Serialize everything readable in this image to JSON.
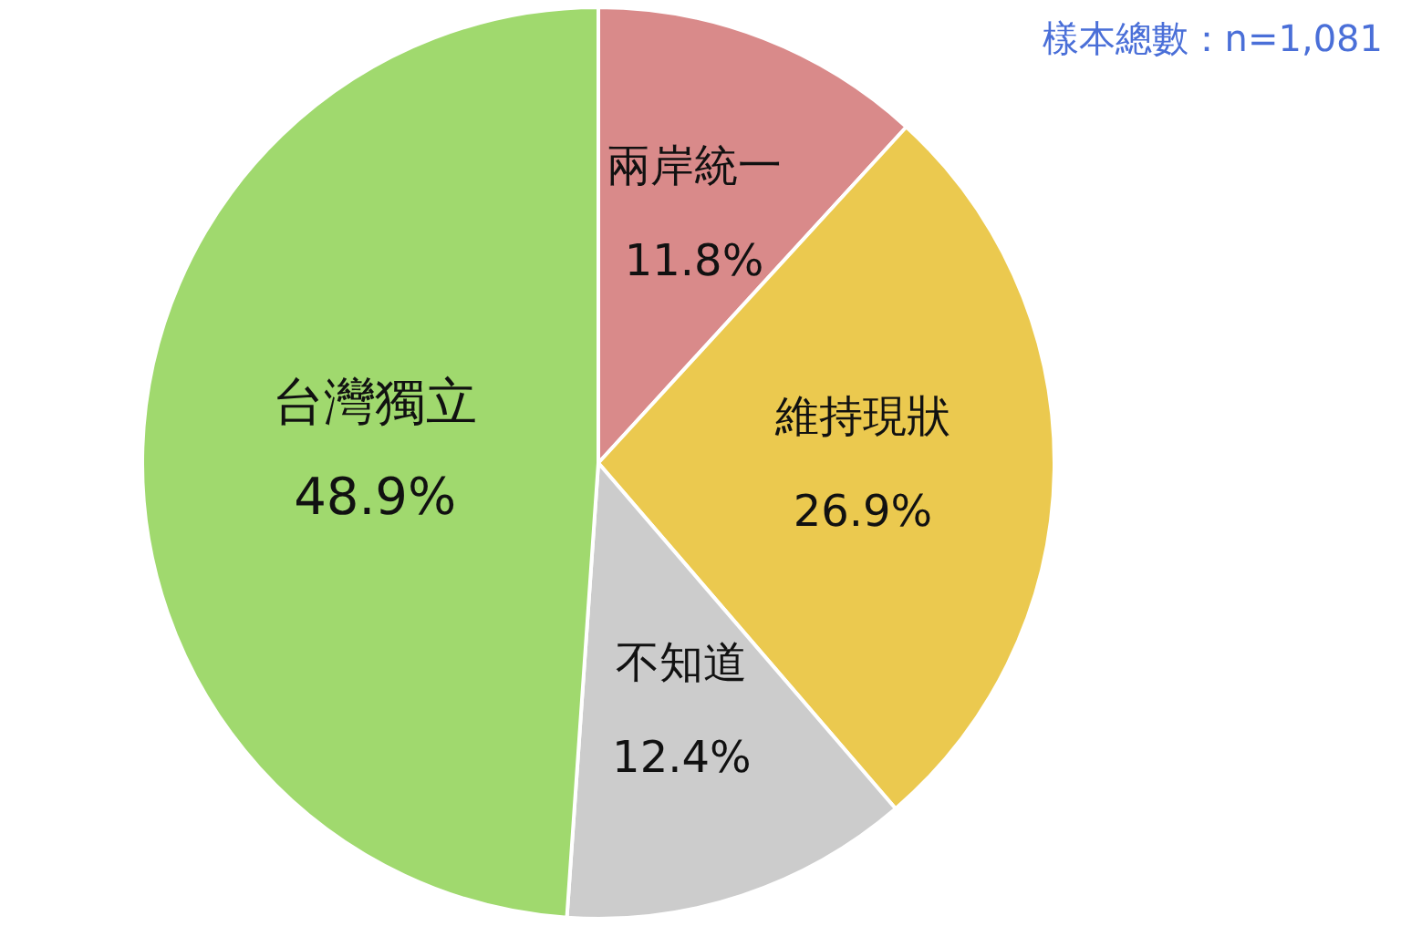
{
  "chart_data": {
    "type": "pie",
    "categories": [
      "兩岸統一",
      "維持現狀",
      "不知道",
      "台灣獨立"
    ],
    "values": [
      11.8,
      26.9,
      12.4,
      48.9
    ],
    "colors": [
      "#d98a8a",
      "#ebc94f",
      "#cccccc",
      "#a0d96e"
    ],
    "value_labels": [
      "11.8%",
      "26.9%",
      "12.4%",
      "48.9%"
    ],
    "annotations": [
      "樣本總數：n=1,081"
    ]
  }
}
